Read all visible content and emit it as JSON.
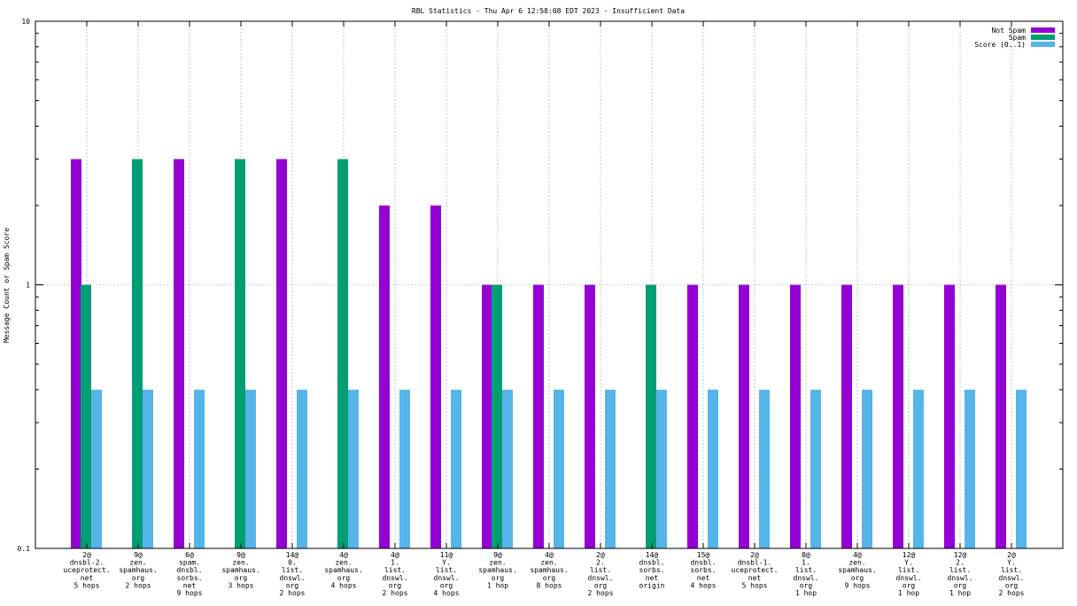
{
  "chart_data": {
    "type": "bar",
    "title": "RBL Statistics - Thu Apr  6 12:58:08 EDT 2023 - Insufficient Data",
    "ylabel": "Message Count or Spam Score",
    "xlabel": "",
    "yscale": "log",
    "ylim": [
      0.1,
      10
    ],
    "yticks": [
      "0.1",
      "1",
      "10"
    ],
    "grid": true,
    "legend_position": "top-right",
    "categories": [
      [
        "2@",
        "dnsbl-2.",
        "uceprotect.",
        "net",
        "5 hops"
      ],
      [
        "9@",
        "zen.",
        "spamhaus.",
        "org",
        "2 hops"
      ],
      [
        "6@",
        "spam.",
        "dnsbl.",
        "sorbs.",
        "net",
        "9 hops"
      ],
      [
        "9@",
        "zen.",
        "spamhaus.",
        "org",
        "3 hops"
      ],
      [
        "14@",
        "0.",
        "list.",
        "dnswl.",
        "org",
        "2 hops"
      ],
      [
        "4@",
        "zen.",
        "spamhaus.",
        "org",
        "4 hops"
      ],
      [
        "4@",
        "1.",
        "list.",
        "dnswl.",
        "org",
        "2 hops"
      ],
      [
        "11@",
        "Y.",
        "list.",
        "dnswl.",
        "org",
        "4 hops"
      ],
      [
        "9@",
        "zen.",
        "spamhaus.",
        "org",
        "1 hop"
      ],
      [
        "4@",
        "zen.",
        "spamhaus.",
        "org",
        "8 hops"
      ],
      [
        "2@",
        "2.",
        "list.",
        "dnswl.",
        "org",
        "2 hops"
      ],
      [
        "14@",
        "dnsbl.",
        "sorbs.",
        "net",
        "origin"
      ],
      [
        "15@",
        "dnsbl.",
        "sorbs.",
        "net",
        "4 hops"
      ],
      [
        "2@",
        "dnsbl-1.",
        "uceprotect.",
        "net",
        "5 hops"
      ],
      [
        "8@",
        "1.",
        "list.",
        "dnswl.",
        "org",
        "1 hop"
      ],
      [
        "4@",
        "zen.",
        "spamhaus.",
        "org",
        "9 hops"
      ],
      [
        "12@",
        "Y.",
        "list.",
        "dnswl.",
        "org",
        "1 hop"
      ],
      [
        "12@",
        "2.",
        "list.",
        "dnswl.",
        "org",
        "1 hop"
      ],
      [
        "2@",
        "Y.",
        "list.",
        "dnswl.",
        "org",
        "2 hops"
      ]
    ],
    "series": [
      {
        "name": "Not Spam",
        "color": "#9400d3",
        "values": [
          3,
          0,
          3,
          0,
          3,
          0,
          2,
          2,
          1,
          1,
          1,
          0,
          1,
          1,
          1,
          1,
          1,
          1,
          1
        ]
      },
      {
        "name": "Spam",
        "color": "#009e73",
        "values": [
          1,
          3,
          0,
          3,
          0,
          3,
          0,
          0,
          1,
          0,
          0,
          1,
          0,
          0,
          0,
          0,
          0,
          0,
          0
        ]
      },
      {
        "name": "Score (0..1)",
        "color": "#56b4e9",
        "values": [
          0.4,
          0.4,
          0.4,
          0.4,
          0.4,
          0.4,
          0.4,
          0.4,
          0.4,
          0.4,
          0.4,
          0.4,
          0.4,
          0.4,
          0.4,
          0.4,
          0.4,
          0.4,
          0.4
        ]
      }
    ]
  }
}
